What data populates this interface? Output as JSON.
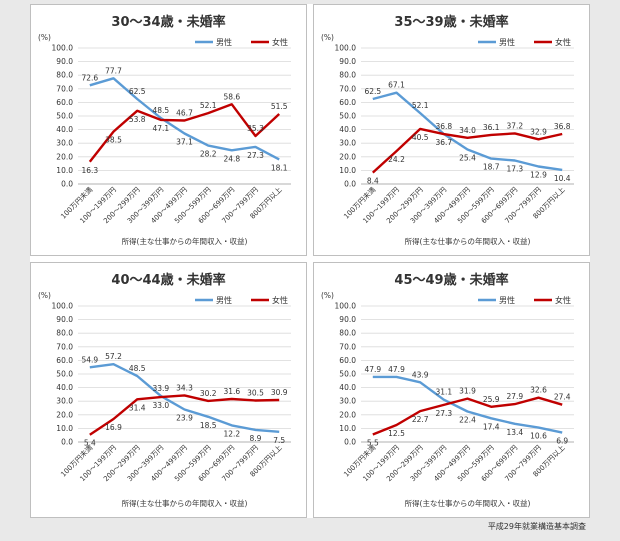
{
  "source_note": "平成29年就業構造基本調査",
  "colors": {
    "male": "#5b9bd5",
    "female": "#c00000",
    "grid": "#d9d9d9",
    "panel_border": "#bfbfbf"
  },
  "chart_data": [
    {
      "type": "line",
      "title": "30～34歳・未婚率",
      "unit_label": "(%)",
      "xlabel": "所得(主な仕事からの年間収入・収益)",
      "ylabel": "",
      "ylim": [
        0,
        100
      ],
      "y_ticks": [
        "100.0",
        "90.0",
        "80.0",
        "70.0",
        "60.0",
        "50.0",
        "40.0",
        "30.0",
        "20.0",
        "10.0",
        "0.0"
      ],
      "legend_position": "top-right",
      "grid": true,
      "categories": [
        "100万円未満",
        "100～199万円",
        "200～299万円",
        "300～399万円",
        "400～499万円",
        "500～599万円",
        "600～699万円",
        "700～799万円",
        "800万円以上"
      ],
      "series": [
        {
          "name": "男性",
          "color": "#5b9bd5",
          "values": [
            72.6,
            77.7,
            62.5,
            48.5,
            37.1,
            28.2,
            24.8,
            27.3,
            18.1
          ]
        },
        {
          "name": "女性",
          "color": "#c00000",
          "values": [
            16.3,
            38.5,
            53.8,
            47.1,
            46.7,
            52.1,
            58.6,
            35.3,
            51.5
          ]
        }
      ]
    },
    {
      "type": "line",
      "title": "35～39歳・未婚率",
      "unit_label": "(%)",
      "xlabel": "所得(主な仕事からの年間収入・収益)",
      "ylabel": "",
      "ylim": [
        0,
        100
      ],
      "y_ticks": [
        "100.0",
        "90.0",
        "80.0",
        "70.0",
        "60.0",
        "50.0",
        "40.0",
        "30.0",
        "20.0",
        "10.0",
        "0.0"
      ],
      "legend_position": "top-right",
      "grid": true,
      "categories": [
        "100万円未満",
        "100～199万円",
        "200～299万円",
        "300～399万円",
        "400～499万円",
        "500～599万円",
        "600～699万円",
        "700～799万円",
        "800万円以上"
      ],
      "series": [
        {
          "name": "男性",
          "color": "#5b9bd5",
          "values": [
            62.5,
            67.1,
            52.1,
            36.8,
            25.4,
            18.7,
            17.3,
            12.9,
            10.4
          ]
        },
        {
          "name": "女性",
          "color": "#c00000",
          "values": [
            8.4,
            24.2,
            40.5,
            36.7,
            34.0,
            36.1,
            37.2,
            32.9,
            36.8
          ]
        }
      ]
    },
    {
      "type": "line",
      "title": "40～44歳・未婚率",
      "unit_label": "(%)",
      "xlabel": "所得(主な仕事からの年間収入・収益)",
      "ylabel": "",
      "ylim": [
        0,
        100
      ],
      "y_ticks": [
        "100.0",
        "90.0",
        "80.0",
        "70.0",
        "60.0",
        "50.0",
        "40.0",
        "30.0",
        "20.0",
        "10.0",
        "0.0"
      ],
      "legend_position": "top-right",
      "grid": true,
      "categories": [
        "100万円未満",
        "100～199万円",
        "200～299万円",
        "300～399万円",
        "400～499万円",
        "500～599万円",
        "600～699万円",
        "700～799万円",
        "800万円以上"
      ],
      "series": [
        {
          "name": "男性",
          "color": "#5b9bd5",
          "values": [
            54.9,
            57.2,
            48.5,
            33.9,
            23.9,
            18.5,
            12.2,
            8.9,
            7.5
          ]
        },
        {
          "name": "女性",
          "color": "#c00000",
          "values": [
            5.4,
            16.9,
            31.4,
            33.0,
            34.3,
            30.2,
            31.6,
            30.5,
            30.9
          ]
        }
      ]
    },
    {
      "type": "line",
      "title": "45～49歳・未婚率",
      "unit_label": "(%)",
      "xlabel": "所得(主な仕事からの年間収入・収益)",
      "ylabel": "",
      "ylim": [
        0,
        100
      ],
      "y_ticks": [
        "100.0",
        "90.0",
        "80.0",
        "70.0",
        "60.0",
        "50.0",
        "40.0",
        "30.0",
        "20.0",
        "10.0",
        "0.0"
      ],
      "legend_position": "top-right",
      "grid": true,
      "categories": [
        "100万円未満",
        "100～199万円",
        "200～299万円",
        "300～399万円",
        "400～499万円",
        "500～599万円",
        "600～699万円",
        "700～799万円",
        "800万円以上"
      ],
      "series": [
        {
          "name": "男性",
          "color": "#5b9bd5",
          "values": [
            47.9,
            47.9,
            43.9,
            31.1,
            22.4,
            17.4,
            13.4,
            10.6,
            6.9
          ]
        },
        {
          "name": "女性",
          "color": "#c00000",
          "values": [
            5.5,
            12.5,
            22.7,
            27.3,
            31.9,
            25.9,
            27.9,
            32.6,
            27.4
          ]
        }
      ]
    }
  ]
}
